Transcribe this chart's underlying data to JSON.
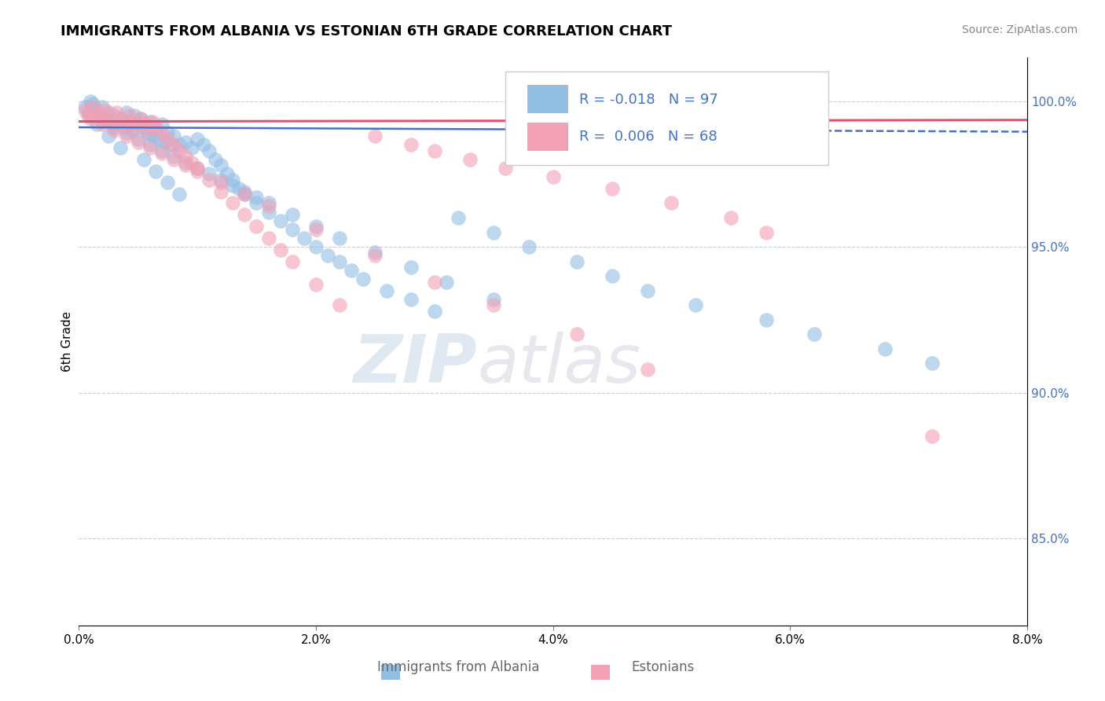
{
  "title": "IMMIGRANTS FROM ALBANIA VS ESTONIAN 6TH GRADE CORRELATION CHART",
  "source_text": "Source: ZipAtlas.com",
  "ylabel": "6th Grade",
  "xlim": [
    0.0,
    8.0
  ],
  "ylim": [
    82.0,
    101.5
  ],
  "x_tick_labels": [
    "0.0%",
    "2.0%",
    "4.0%",
    "6.0%",
    "8.0%"
  ],
  "x_tick_vals": [
    0.0,
    2.0,
    4.0,
    6.0,
    8.0
  ],
  "y_tick_labels": [
    "85.0%",
    "90.0%",
    "95.0%",
    "100.0%"
  ],
  "y_tick_vals": [
    85.0,
    90.0,
    95.0,
    100.0
  ],
  "legend_label1": "Immigrants from Albania",
  "legend_label2": "Estonians",
  "R1": -0.018,
  "N1": 97,
  "R2": 0.006,
  "N2": 68,
  "color_blue": "#92BEE4",
  "color_pink": "#F4A0B5",
  "trendline_blue": "#4472C4",
  "trendline_pink": "#E05070",
  "watermark_zip": "ZIP",
  "watermark_atlas": "atlas",
  "blue_trendline_y0": 99.1,
  "blue_trendline_y1": 98.95,
  "pink_trendline_y0": 99.3,
  "pink_trendline_y1": 99.35,
  "blue_scatter_x": [
    0.05,
    0.08,
    0.1,
    0.12,
    0.15,
    0.17,
    0.2,
    0.22,
    0.25,
    0.27,
    0.3,
    0.32,
    0.35,
    0.38,
    0.4,
    0.42,
    0.45,
    0.47,
    0.5,
    0.52,
    0.55,
    0.58,
    0.6,
    0.62,
    0.65,
    0.68,
    0.7,
    0.72,
    0.75,
    0.78,
    0.8,
    0.85,
    0.9,
    0.95,
    1.0,
    1.05,
    1.1,
    1.15,
    1.2,
    1.25,
    1.3,
    1.35,
    1.4,
    1.5,
    1.6,
    1.7,
    1.8,
    1.9,
    2.0,
    2.1,
    2.2,
    2.3,
    2.4,
    2.6,
    2.8,
    3.0,
    3.2,
    3.5,
    3.8,
    4.2,
    4.5,
    4.8,
    5.2,
    5.8,
    6.2,
    6.8,
    7.2,
    0.1,
    0.2,
    0.3,
    0.4,
    0.5,
    0.6,
    0.7,
    0.8,
    0.9,
    1.0,
    1.1,
    1.2,
    1.3,
    1.4,
    1.5,
    1.6,
    1.8,
    2.0,
    2.2,
    2.5,
    2.8,
    3.1,
    3.5,
    0.15,
    0.25,
    0.35,
    0.55,
    0.65,
    0.75,
    0.85
  ],
  "blue_scatter_y": [
    99.8,
    99.6,
    100.0,
    99.9,
    99.7,
    99.5,
    99.8,
    99.4,
    99.6,
    99.3,
    99.5,
    99.2,
    99.4,
    99.1,
    99.6,
    99.3,
    99.0,
    99.5,
    99.2,
    99.4,
    99.1,
    98.9,
    99.3,
    98.8,
    99.0,
    98.7,
    99.2,
    98.6,
    98.9,
    98.5,
    98.8,
    98.5,
    98.6,
    98.4,
    98.7,
    98.5,
    98.3,
    98.0,
    97.8,
    97.5,
    97.3,
    97.0,
    96.8,
    96.5,
    96.2,
    95.9,
    95.6,
    95.3,
    95.0,
    94.7,
    94.5,
    94.2,
    93.9,
    93.5,
    93.2,
    92.8,
    96.0,
    95.5,
    95.0,
    94.5,
    94.0,
    93.5,
    93.0,
    92.5,
    92.0,
    91.5,
    91.0,
    99.5,
    99.3,
    99.1,
    98.9,
    98.7,
    98.5,
    98.3,
    98.1,
    97.9,
    97.7,
    97.5,
    97.3,
    97.1,
    96.9,
    96.7,
    96.5,
    96.1,
    95.7,
    95.3,
    94.8,
    94.3,
    93.8,
    93.2,
    99.2,
    98.8,
    98.4,
    98.0,
    97.6,
    97.2,
    96.8
  ],
  "pink_scatter_x": [
    0.05,
    0.08,
    0.12,
    0.15,
    0.18,
    0.22,
    0.25,
    0.28,
    0.32,
    0.35,
    0.38,
    0.42,
    0.45,
    0.48,
    0.52,
    0.55,
    0.58,
    0.62,
    0.65,
    0.7,
    0.75,
    0.8,
    0.85,
    0.9,
    0.95,
    1.0,
    1.1,
    1.2,
    1.3,
    1.4,
    1.5,
    1.6,
    1.7,
    1.8,
    2.0,
    2.2,
    2.5,
    2.8,
    3.0,
    3.3,
    3.6,
    4.0,
    4.5,
    5.0,
    5.5,
    5.8,
    0.1,
    0.2,
    0.3,
    0.4,
    0.5,
    0.6,
    0.7,
    0.8,
    0.9,
    1.0,
    1.2,
    1.4,
    1.6,
    2.0,
    2.5,
    3.0,
    3.5,
    4.2,
    4.8,
    5.5,
    6.2,
    7.2
  ],
  "pink_scatter_y": [
    99.7,
    99.5,
    99.8,
    99.6,
    99.4,
    99.7,
    99.5,
    99.3,
    99.6,
    99.4,
    99.2,
    99.5,
    99.3,
    99.1,
    99.4,
    99.2,
    99.0,
    99.3,
    99.1,
    98.9,
    98.7,
    98.5,
    98.3,
    98.1,
    97.9,
    97.7,
    97.3,
    96.9,
    96.5,
    96.1,
    95.7,
    95.3,
    94.9,
    94.5,
    93.7,
    93.0,
    98.8,
    98.5,
    98.3,
    98.0,
    97.7,
    97.4,
    97.0,
    96.5,
    96.0,
    95.5,
    99.4,
    99.2,
    99.0,
    98.8,
    98.6,
    98.4,
    98.2,
    98.0,
    97.8,
    97.6,
    97.2,
    96.8,
    96.4,
    95.6,
    94.7,
    93.8,
    93.0,
    92.0,
    90.8,
    99.0,
    98.5,
    88.5
  ]
}
